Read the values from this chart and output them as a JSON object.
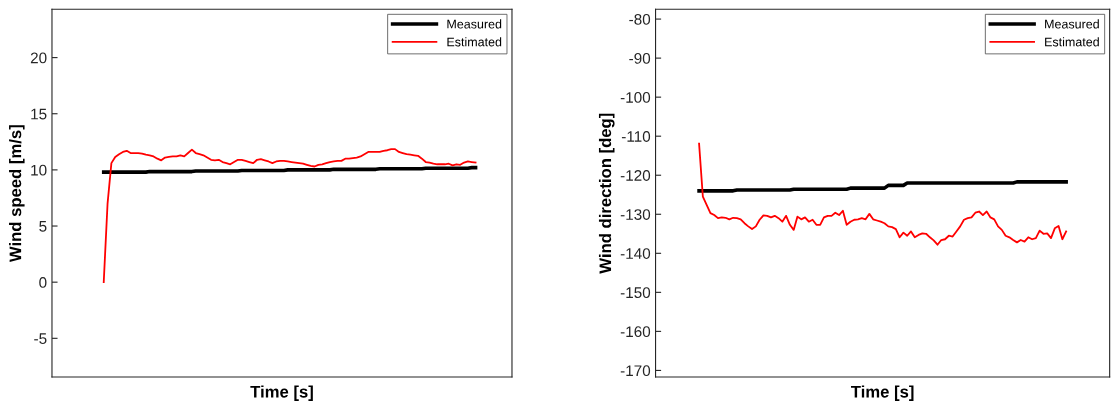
{
  "chart_data": [
    {
      "type": "line",
      "xlabel": "Time [s]",
      "ylabel": "Wind speed [m/s]",
      "ylim": [
        -8.45,
        24.3
      ],
      "yticks": [
        -5,
        0,
        5,
        10,
        15,
        20
      ],
      "tick_labels": "y",
      "legend": "top right",
      "grid": false,
      "marker": "none",
      "line_style": "solid",
      "categories": [
        null,
        null,
        null,
        null,
        null,
        null,
        null,
        null,
        null,
        null,
        null,
        null,
        null,
        null,
        null,
        null,
        null,
        null,
        null,
        null,
        null,
        null,
        null,
        null,
        null,
        null,
        null,
        null,
        null,
        null,
        null,
        null,
        null,
        null,
        null,
        null,
        null,
        null,
        null,
        null,
        null,
        null,
        null,
        null,
        null,
        null,
        null,
        null,
        null,
        null,
        null,
        null,
        null,
        null,
        null,
        null,
        null,
        null,
        null,
        null,
        null,
        null,
        null,
        null,
        null,
        null,
        null,
        null,
        null,
        null,
        null,
        null,
        null,
        null,
        null,
        null,
        null,
        null,
        null,
        null,
        null,
        null,
        null,
        null,
        null,
        null,
        null,
        null,
        null,
        null,
        null,
        null,
        null,
        null,
        null,
        null,
        null,
        null,
        null,
        null,
        null,
        null,
        null,
        null,
        null,
        null,
        null,
        null,
        null,
        null,
        null,
        null,
        null,
        null,
        null,
        null,
        null,
        null,
        null,
        null
      ],
      "series": [
        {
          "name": "Measured",
          "color": "#000000",
          "values": [
            null,
            null,
            null,
            null,
            null,
            null,
            null,
            null,
            null,
            null,
            null,
            null,
            null,
            9.8,
            9.8,
            9.8,
            9.8,
            9.8,
            9.8,
            9.8,
            9.8,
            9.8,
            9.8,
            9.8,
            9.8,
            9.85,
            9.85,
            9.85,
            9.85,
            9.85,
            9.85,
            9.85,
            9.85,
            9.85,
            9.85,
            9.85,
            9.85,
            9.9,
            9.9,
            9.9,
            9.9,
            9.9,
            9.9,
            9.9,
            9.9,
            9.9,
            9.9,
            9.9,
            9.9,
            9.95,
            9.95,
            9.95,
            9.95,
            9.95,
            9.95,
            9.95,
            9.95,
            9.95,
            9.95,
            9.95,
            9.95,
            10.0,
            10.0,
            10.0,
            10.0,
            10.0,
            10.0,
            10.0,
            10.0,
            10.0,
            10.0,
            10.0,
            10.0,
            10.05,
            10.05,
            10.05,
            10.05,
            10.05,
            10.05,
            10.05,
            10.05,
            10.05,
            10.05,
            10.05,
            10.05,
            10.1,
            10.1,
            10.1,
            10.1,
            10.1,
            10.1,
            10.1,
            10.1,
            10.1,
            10.1,
            10.1,
            10.1,
            10.15,
            10.15,
            10.15,
            10.15,
            10.15,
            10.15,
            10.15,
            10.15,
            10.15,
            10.15,
            10.15,
            10.15,
            10.2,
            10.2,
            null,
            null,
            null,
            null,
            null,
            null,
            null,
            null,
            null
          ]
        },
        {
          "name": "Estimated",
          "color": "#ff0000",
          "values": [
            null,
            null,
            null,
            null,
            null,
            null,
            null,
            null,
            null,
            null,
            null,
            null,
            null,
            0,
            7.0,
            10.6,
            11.15,
            11.4,
            11.6,
            11.7,
            11.5,
            11.5,
            11.5,
            11.45,
            11.35,
            11.3,
            11.2,
            11.0,
            10.85,
            11.1,
            11.15,
            11.2,
            11.2,
            11.3,
            11.2,
            11.5,
            11.8,
            11.5,
            11.4,
            11.3,
            11.1,
            10.9,
            10.85,
            10.9,
            10.7,
            10.6,
            10.5,
            10.7,
            10.9,
            10.9,
            10.8,
            10.7,
            10.6,
            10.9,
            10.95,
            10.85,
            10.75,
            10.6,
            10.75,
            10.8,
            10.8,
            10.75,
            10.7,
            10.65,
            10.6,
            10.55,
            10.45,
            10.35,
            10.3,
            10.45,
            10.5,
            10.6,
            10.7,
            10.75,
            10.8,
            10.8,
            11.0,
            11.0,
            11.05,
            11.1,
            11.2,
            11.4,
            11.6,
            11.6,
            11.6,
            11.6,
            11.7,
            11.75,
            11.85,
            11.85,
            11.6,
            11.5,
            11.4,
            11.35,
            11.3,
            11.25,
            11.0,
            10.7,
            10.65,
            10.55,
            10.5,
            10.5,
            10.5,
            10.55,
            10.4,
            10.5,
            10.45,
            10.65,
            10.75,
            10.7,
            10.65,
            null,
            null,
            null,
            null,
            null,
            null,
            null,
            null,
            null
          ]
        }
      ]
    },
    {
      "type": "line",
      "xlabel": "Time [s]",
      "ylabel": "Wind direction [deg]",
      "ylim": [
        -171.7,
        -77.5
      ],
      "yticks": [
        -170,
        -160,
        -150,
        -140,
        -130,
        -120,
        -110,
        -100,
        -90,
        -80
      ],
      "tick_labels": "y",
      "legend": "top right",
      "grid": false,
      "marker": "none",
      "line_style": "solid",
      "categories": [
        null,
        null,
        null,
        null,
        null,
        null,
        null,
        null,
        null,
        null,
        null,
        null,
        null,
        null,
        null,
        null,
        null,
        null,
        null,
        null,
        null,
        null,
        null,
        null,
        null,
        null,
        null,
        null,
        null,
        null,
        null,
        null,
        null,
        null,
        null,
        null,
        null,
        null,
        null,
        null,
        null,
        null,
        null,
        null,
        null,
        null,
        null,
        null,
        null,
        null,
        null,
        null,
        null,
        null,
        null,
        null,
        null,
        null,
        null,
        null,
        null,
        null,
        null,
        null,
        null,
        null,
        null,
        null,
        null,
        null,
        null,
        null,
        null,
        null,
        null,
        null,
        null,
        null,
        null,
        null,
        null,
        null,
        null,
        null,
        null,
        null,
        null,
        null,
        null,
        null,
        null,
        null,
        null,
        null,
        null,
        null,
        null,
        null,
        null,
        null,
        null,
        null,
        null,
        null,
        null,
        null,
        null,
        null,
        null,
        null,
        null,
        null,
        null,
        null,
        null,
        null,
        null,
        null,
        null,
        null
      ],
      "series": [
        {
          "name": "Measured",
          "color": "#000000",
          "values": [
            null,
            null,
            null,
            null,
            null,
            null,
            null,
            null,
            null,
            null,
            null,
            -124.0,
            -124.0,
            -124.0,
            -124.0,
            -124.0,
            -124.0,
            -124.0,
            -124.0,
            -124.0,
            -124.0,
            -123.8,
            -123.8,
            -123.8,
            -123.8,
            -123.8,
            -123.8,
            -123.8,
            -123.8,
            -123.8,
            -123.8,
            -123.8,
            -123.8,
            -123.8,
            -123.8,
            -123.8,
            -123.6,
            -123.6,
            -123.6,
            -123.6,
            -123.6,
            -123.6,
            -123.6,
            -123.6,
            -123.6,
            -123.6,
            -123.6,
            -123.6,
            -123.6,
            -123.6,
            -123.6,
            -123.3,
            -123.3,
            -123.3,
            -123.3,
            -123.3,
            -123.3,
            -123.3,
            -123.3,
            -123.3,
            -123.3,
            -122.6,
            -122.6,
            -122.6,
            -122.6,
            -122.6,
            -122.0,
            -122.0,
            -122.0,
            -122.0,
            -122.0,
            -122.0,
            -122.0,
            -122.0,
            -122.0,
            -122.0,
            -122.0,
            -122.0,
            -122.0,
            -122.0,
            -122.0,
            -122.0,
            -122.0,
            -122.0,
            -122.0,
            -122.0,
            -122.0,
            -122.0,
            -122.0,
            -122.0,
            -122.0,
            -122.0,
            -122.0,
            -122.0,
            -122.0,
            -121.7,
            -121.7,
            -121.7,
            -121.7,
            -121.7,
            -121.7,
            -121.7,
            -121.7,
            -121.7,
            -121.7,
            -121.7,
            -121.7,
            -121.7,
            -121.7,
            null,
            null,
            null,
            null,
            null,
            null,
            null,
            null,
            null,
            null,
            null
          ]
        },
        {
          "name": "Estimated",
          "color": "#ff0000",
          "values": [
            null,
            null,
            null,
            null,
            null,
            null,
            null,
            null,
            null,
            null,
            null,
            -111.9,
            -125.5,
            -127.6,
            -129.7,
            -130.2,
            -131.0,
            -130.8,
            -130.9,
            -131.3,
            -130.9,
            -131.0,
            -131.3,
            -132.3,
            -133.1,
            -133.8,
            -133.1,
            -131.4,
            -130.3,
            -130.4,
            -130.8,
            -130.4,
            -131.0,
            -131.9,
            -130.4,
            -132.7,
            -134.0,
            -130.6,
            -131.3,
            -130.8,
            -131.9,
            -131.4,
            -132.7,
            -132.7,
            -130.8,
            -130.4,
            -130.4,
            -129.6,
            -130.2,
            -129.1,
            -132.7,
            -131.9,
            -131.4,
            -131.3,
            -131.0,
            -131.3,
            -129.9,
            -131.3,
            -131.6,
            -131.9,
            -132.3,
            -133.1,
            -133.3,
            -133.8,
            -135.9,
            -134.7,
            -135.5,
            -134.4,
            -135.9,
            -135.3,
            -134.9,
            -135.0,
            -135.9,
            -136.7,
            -137.8,
            -136.6,
            -136.4,
            -135.5,
            -135.7,
            -134.4,
            -133.1,
            -131.4,
            -131.0,
            -130.8,
            -129.6,
            -129.3,
            -130.2,
            -129.3,
            -130.8,
            -131.3,
            -133.1,
            -134.0,
            -135.5,
            -135.9,
            -136.6,
            -137.2,
            -136.6,
            -137.0,
            -135.9,
            -136.4,
            -136.1,
            -134.2,
            -135.0,
            -134.9,
            -136.1,
            -133.6,
            -133.0,
            -136.4,
            -134.4,
            null,
            null,
            null,
            null,
            null,
            null,
            null,
            null,
            null,
            null,
            null
          ]
        }
      ]
    }
  ]
}
